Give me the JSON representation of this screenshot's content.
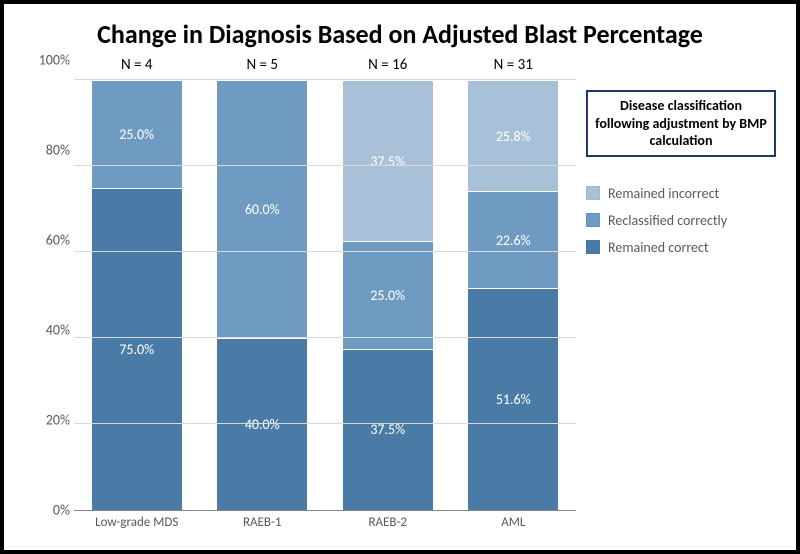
{
  "chart": {
    "type": "stacked_bar_100pct",
    "title": "Change in Diagnosis Based on Adjusted Blast Percentage",
    "title_fontsize": 26,
    "background_color": "#ffffff",
    "grid_color": "#d9d9d9",
    "axis_font_color": "#595959",
    "bar_width_pct": 72,
    "y_axis": {
      "min": 0,
      "max": 100,
      "ticks": [
        0,
        20,
        40,
        60,
        80,
        100
      ],
      "tick_labels": [
        "0%",
        "20%",
        "40%",
        "60%",
        "80%",
        "100%"
      ],
      "tick_fontsize": 14
    },
    "categories": [
      {
        "label": "Low-grade MDS",
        "n_label": "N = 4"
      },
      {
        "label": "RAEB-1",
        "n_label": "N = 5"
      },
      {
        "label": "RAEB-2",
        "n_label": "N = 16"
      },
      {
        "label": "AML",
        "n_label": "N = 31"
      }
    ],
    "series": [
      {
        "key": "remained_correct",
        "label": "Remained correct",
        "color": "#4a7ba6",
        "text_color": "#ffffff"
      },
      {
        "key": "reclassified_correct",
        "label": "Reclassified correctly",
        "color": "#6f9bc3",
        "text_color": "#ffffff"
      },
      {
        "key": "remained_incorrect",
        "label": "Remained incorrect",
        "color": "#a8c0d8",
        "text_color": "#ffffff"
      }
    ],
    "data": [
      {
        "remained_correct": {
          "value": 75.0,
          "label": "75.0%"
        },
        "reclassified_correct": {
          "value": 25.0,
          "label": "25.0%"
        },
        "remained_incorrect": {
          "value": 0.0,
          "label": ""
        }
      },
      {
        "remained_correct": {
          "value": 40.0,
          "label": "40.0%"
        },
        "reclassified_correct": {
          "value": 60.0,
          "label": "60.0%"
        },
        "remained_incorrect": {
          "value": 0.0,
          "label": ""
        }
      },
      {
        "remained_correct": {
          "value": 37.5,
          "label": "37.5%"
        },
        "reclassified_correct": {
          "value": 25.0,
          "label": "25.0%"
        },
        "remained_incorrect": {
          "value": 37.5,
          "label": "37.5%"
        }
      },
      {
        "remained_correct": {
          "value": 51.6,
          "label": "51.6%"
        },
        "reclassified_correct": {
          "value": 22.6,
          "label": "22.6%"
        },
        "remained_incorrect": {
          "value": 25.8,
          "label": "25.8%"
        }
      }
    ],
    "legend": {
      "title": "Disease classification following adjustment by BMP calculation",
      "title_border_color": "#1f3864",
      "fontsize": 14
    }
  }
}
